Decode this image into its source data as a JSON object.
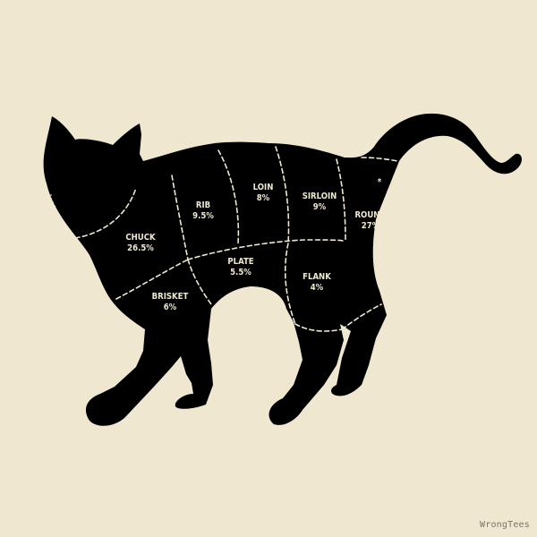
{
  "artwork": "cat butcher chart",
  "colors": {
    "background": "#efe7cf",
    "silhouette": "#000000",
    "lines": "#efe7cf",
    "watermark": "#7a746a"
  },
  "cuts": [
    {
      "id": "chuck",
      "name": "CHUCK",
      "percent": "26.5%"
    },
    {
      "id": "rib",
      "name": "RIB",
      "percent": "9.5%"
    },
    {
      "id": "loin",
      "name": "LOIN",
      "percent": "8%"
    },
    {
      "id": "sirloin",
      "name": "SIRLOIN",
      "percent": "9%"
    },
    {
      "id": "round",
      "name": "ROUND",
      "percent": "27%"
    },
    {
      "id": "plate",
      "name": "PLATE",
      "percent": "5.5%"
    },
    {
      "id": "flank",
      "name": "FLANK",
      "percent": "4%"
    },
    {
      "id": "brisket",
      "name": "BRISKET",
      "percent": "6%"
    }
  ],
  "anus_mark": "*",
  "watermark": "WrongTees"
}
